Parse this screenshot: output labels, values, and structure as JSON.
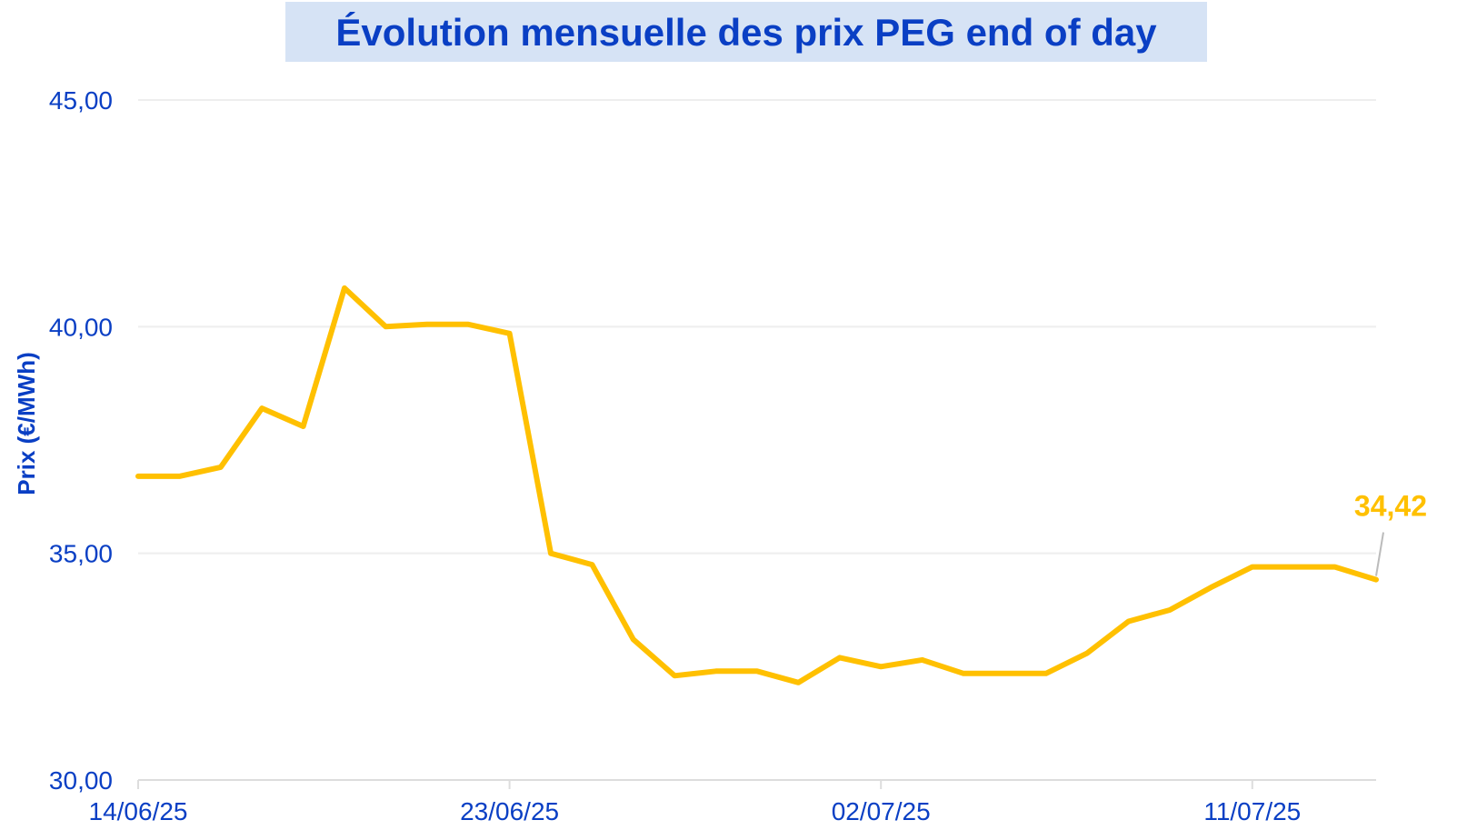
{
  "chart_data": {
    "type": "line",
    "title": "Évolution mensuelle des prix PEG end of day",
    "ylabel": "Prix (€/MWh)",
    "xlabel": "",
    "ylim": [
      30,
      45
    ],
    "y_ticks": [
      30,
      35,
      40,
      45
    ],
    "y_tick_labels": [
      "30,00",
      "35,00",
      "40,00",
      "45,00"
    ],
    "x_tick_labels": [
      "14/06/25",
      "23/06/25",
      "02/07/25",
      "11/07/25"
    ],
    "x_tick_indices": [
      0,
      9,
      18,
      27
    ],
    "grid": true,
    "legend": "none",
    "series": [
      {
        "color": "#ffc000",
        "values": [
          36.7,
          36.7,
          36.9,
          38.2,
          37.8,
          40.85,
          40.0,
          40.05,
          40.05,
          39.85,
          35.0,
          34.75,
          33.1,
          32.3,
          32.4,
          32.4,
          32.15,
          32.7,
          32.5,
          32.65,
          32.35,
          32.35,
          32.35,
          32.8,
          33.5,
          33.75,
          34.25,
          34.7,
          34.7,
          34.7,
          34.42
        ]
      }
    ],
    "last_value_label": "34,42",
    "colors": {
      "title_background": "#d6e3f5",
      "text": "#0a3fc4",
      "series": "#ffc000"
    }
  }
}
